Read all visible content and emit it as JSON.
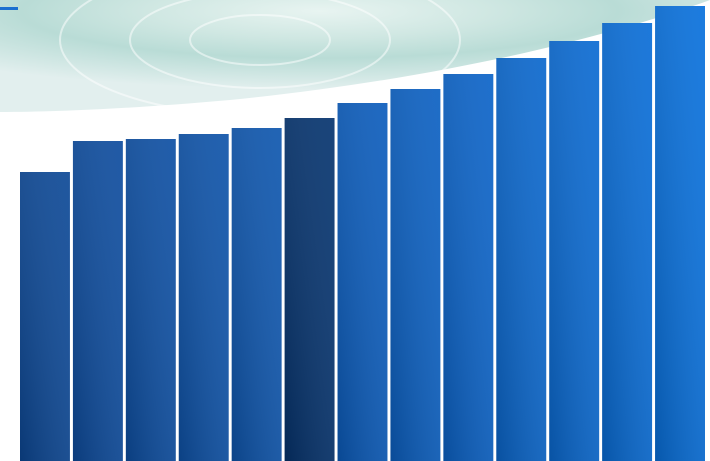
{
  "chart_data": {
    "type": "bar",
    "values": [
      289,
      320,
      322,
      327,
      333,
      343,
      358,
      372,
      387,
      403,
      420,
      438,
      455
    ],
    "colors": [
      "#0c4896",
      "#0d4c9e",
      "#0d4fa3",
      "#0e53a9",
      "#0e56ae",
      "#05336e",
      "#0b5cbc",
      "#0b60c2",
      "#0b63c8",
      "#0a67cd",
      "#0a6ad2",
      "#096dd7",
      "#0870dc"
    ],
    "ylim": [
      0,
      461
    ]
  }
}
